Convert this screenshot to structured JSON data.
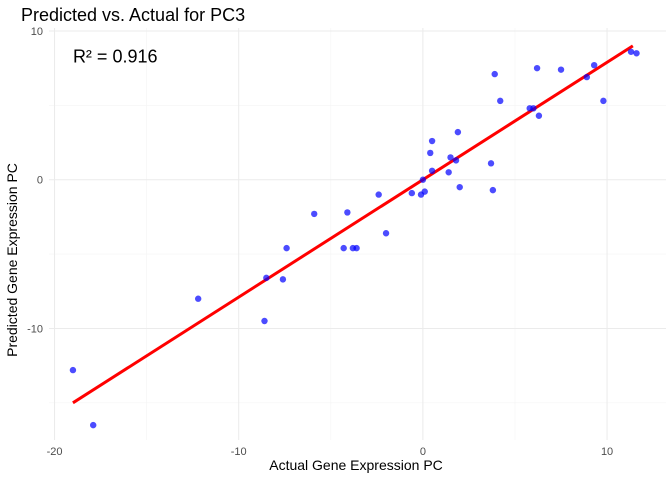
{
  "chart_data": {
    "type": "scatter",
    "title": "Predicted vs. Actual for PC3",
    "xlabel": "Actual Gene Expression PC",
    "ylabel": "Predicted Gene Expression PC",
    "xlim": [
      -20.3,
      13.2
    ],
    "ylim": [
      -17.5,
      10.2
    ],
    "x_ticks": [
      -20,
      -10,
      0,
      10
    ],
    "y_ticks": [
      -10,
      0,
      10
    ],
    "x_tick_labels": [
      "-20",
      "-10",
      "0",
      "10"
    ],
    "y_tick_labels": [
      "-10",
      "0",
      "10"
    ],
    "grid": true,
    "annotation": {
      "text": "R² = 0.916",
      "x": -19,
      "y": 8.3
    },
    "point_color": "#0000FF",
    "line_color": "#FF0000",
    "points": [
      {
        "x": -19.0,
        "y": -12.8
      },
      {
        "x": -17.9,
        "y": -16.5
      },
      {
        "x": -12.2,
        "y": -8.0
      },
      {
        "x": -8.6,
        "y": -9.5
      },
      {
        "x": -8.5,
        "y": -6.6
      },
      {
        "x": -7.6,
        "y": -6.7
      },
      {
        "x": -7.4,
        "y": -4.6
      },
      {
        "x": -5.9,
        "y": -2.3
      },
      {
        "x": -4.3,
        "y": -4.6
      },
      {
        "x": -4.1,
        "y": -2.2
      },
      {
        "x": -3.8,
        "y": -4.6
      },
      {
        "x": -3.6,
        "y": -4.6
      },
      {
        "x": -2.0,
        "y": -3.6
      },
      {
        "x": -2.4,
        "y": -1.0
      },
      {
        "x": -0.6,
        "y": -0.9
      },
      {
        "x": 0.0,
        "y": 0.0
      },
      {
        "x": -0.1,
        "y": -1.0
      },
      {
        "x": 0.1,
        "y": -0.8
      },
      {
        "x": 0.4,
        "y": 1.8
      },
      {
        "x": 0.5,
        "y": 2.6
      },
      {
        "x": 0.5,
        "y": 0.6
      },
      {
        "x": 1.5,
        "y": 1.5
      },
      {
        "x": 1.4,
        "y": 0.5
      },
      {
        "x": 1.8,
        "y": 1.3
      },
      {
        "x": 1.9,
        "y": 3.2
      },
      {
        "x": 2.0,
        "y": -0.5
      },
      {
        "x": 3.7,
        "y": 1.1
      },
      {
        "x": 3.8,
        "y": -0.7
      },
      {
        "x": 3.9,
        "y": 7.1
      },
      {
        "x": 4.2,
        "y": 5.3
      },
      {
        "x": 5.8,
        "y": 4.8
      },
      {
        "x": 6.0,
        "y": 4.8
      },
      {
        "x": 6.3,
        "y": 4.3
      },
      {
        "x": 6.2,
        "y": 7.5
      },
      {
        "x": 7.5,
        "y": 7.4
      },
      {
        "x": 8.9,
        "y": 6.9
      },
      {
        "x": 9.3,
        "y": 7.7
      },
      {
        "x": 9.8,
        "y": 5.3
      },
      {
        "x": 11.3,
        "y": 8.6
      },
      {
        "x": 11.6,
        "y": 8.5
      }
    ],
    "fit_line": {
      "x": [
        -19.0,
        11.4
      ],
      "y": [
        -15.0,
        9.0
      ]
    }
  }
}
